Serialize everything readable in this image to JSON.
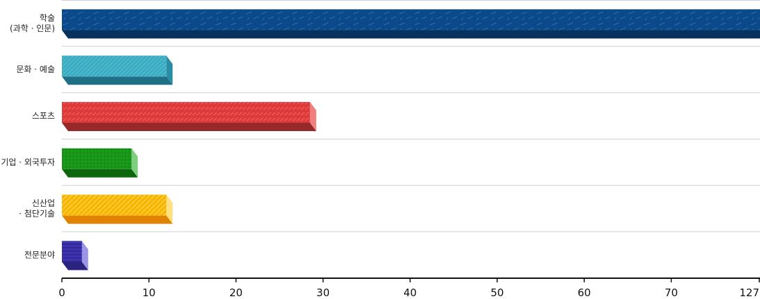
{
  "chart_data": {
    "type": "bar",
    "orientation": "horizontal",
    "title": "",
    "xlabel": "",
    "ylabel": "",
    "categories": [
      [
        "학술",
        "(과학 · 인문)"
      ],
      [
        "문화 · 예술"
      ],
      [
        "스포츠"
      ],
      [
        "기업 · 외국투자"
      ],
      [
        "신산업",
        "· 첨단기술"
      ],
      [
        "전문분야"
      ]
    ],
    "values": [
      127,
      12,
      28.5,
      8,
      12,
      2.3
    ],
    "axis_ticks": [
      0,
      10,
      20,
      30,
      40,
      50,
      60,
      70
    ],
    "axis_max_label": "127",
    "axis_break": "bar 1 value 127 drawn to right edge of axis",
    "grid": false,
    "legend": "none",
    "colors": [
      {
        "front": "#0b4a8a",
        "bottom": "#07325e",
        "side": "#07325e"
      },
      {
        "front": "#3aabc0",
        "bottom": "#1f7086",
        "side": "#2b8da1"
      },
      {
        "front": "#de3a3a",
        "bottom": "#962a2a",
        "side": "#f07f7f"
      },
      {
        "front": "#1c9c1c",
        "bottom": "#0d650d",
        "side": "#7fcd7f"
      },
      {
        "front": "#f7b500",
        "bottom": "#e08300",
        "side": "#ffe080"
      },
      {
        "front": "#3d32b0",
        "bottom": "#2b2380",
        "side": "#9a95e6"
      }
    ]
  }
}
